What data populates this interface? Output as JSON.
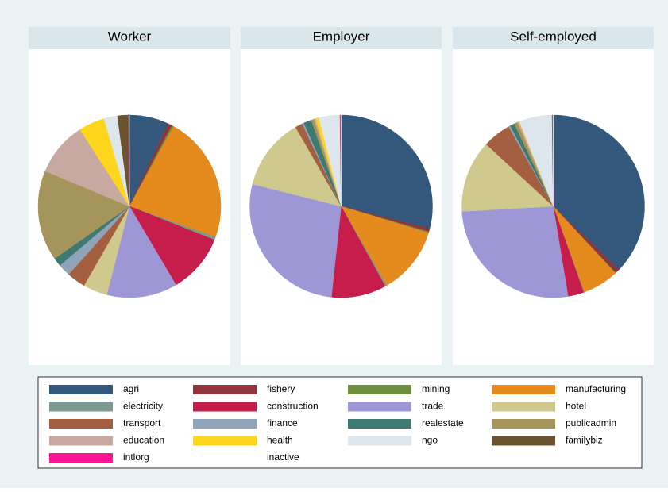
{
  "chart_data": [
    {
      "type": "pie",
      "title": "Worker",
      "values": [
        7,
        0.7,
        0.3,
        22.5,
        0.5,
        10.5,
        12.5,
        4.3,
        3.3,
        2.2,
        1.5,
        16,
        9.6,
        4.6,
        2.4,
        1.9,
        0.1,
        0.1
      ]
    },
    {
      "type": "pie",
      "title": "Employer",
      "values": [
        28.9,
        0.6,
        0.2,
        12,
        0.3,
        9.7,
        27.2,
        12.8,
        1.3,
        0.3,
        1.4,
        0.5,
        0.3,
        0.6,
        3.7,
        0.1,
        0.05,
        0.05
      ]
    },
    {
      "type": "pie",
      "title": "Self-employed",
      "values": [
        37.2,
        0.8,
        0.1,
        6.4,
        0.1,
        2.8,
        26.7,
        12.8,
        5,
        0.3,
        0.8,
        0.6,
        0.3,
        0.1,
        5.8,
        0.1,
        0.05,
        0.05
      ]
    }
  ],
  "legend": {
    "categories": [
      "agri",
      "fishery",
      "mining",
      "manufacturing",
      "electricity",
      "construction",
      "trade",
      "hotel",
      "transport",
      "finance",
      "realestate",
      "publicadmin",
      "education",
      "health",
      "ngo",
      "familybiz",
      "intlorg",
      "inactive"
    ],
    "colors": [
      "#34587b",
      "#90353b",
      "#6e8e3f",
      "#e58a1c",
      "#7c9a8f",
      "#c71d4b",
      "#9e97d6",
      "#cfc98e",
      "#a45f40",
      "#8fa4b8",
      "#3e7a72",
      "#a6955a",
      "#c7a9a2",
      "#fed61e",
      "#dce6ec",
      "#6b5330",
      "#ff1493",
      "#ffffff"
    ],
    "columns": 4
  }
}
